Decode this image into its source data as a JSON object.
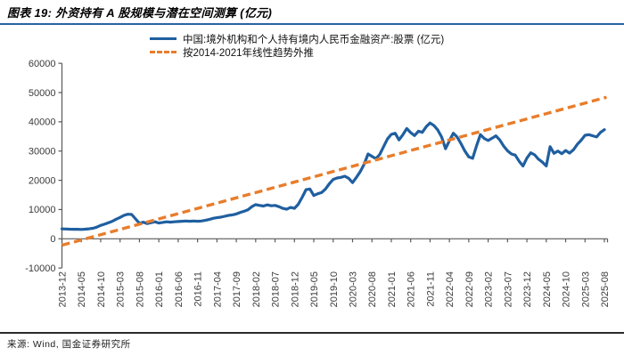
{
  "header": {
    "title": "图表 19: 外资持有 A 股规模与潜在空间测算 (亿元)"
  },
  "legend": [
    {
      "label": "中国:境外机构和个人持有境内人民币金融资产:股票 (亿元)",
      "color": "#1f5fa0",
      "style": "solid"
    },
    {
      "label": "按2014-2021年线性趋势外推",
      "color": "#e87d2b",
      "style": "dashed"
    }
  ],
  "footer": {
    "source": "来源: Wind, 国金证券研究所"
  },
  "colors": {
    "blue_series": "#1f5fa0",
    "orange_trend": "#e87d2b",
    "axis": "#595959",
    "tick_label": "#3b3b3b",
    "title_rule": "#2a63a5",
    "footer_rule": "#2b2b2b"
  },
  "chart_data": {
    "type": "line",
    "title": "外资持有A股规模与潜在空间测算(亿元)",
    "xlabel": "",
    "ylabel": "",
    "ylim": [
      -10000,
      60000
    ],
    "grid": false,
    "legend_position": "top",
    "y_ticks": [
      -10000,
      0,
      10000,
      20000,
      30000,
      40000,
      50000,
      60000
    ],
    "x_tick_labels": [
      "2013-12",
      "2014-05",
      "2014-10",
      "2015-03",
      "2015-08",
      "2016-01",
      "2016-06",
      "2016-11",
      "2017-04",
      "2017-09",
      "2018-02",
      "2018-07",
      "2018-12",
      "2019-05",
      "2019-10",
      "2020-03",
      "2020-08",
      "2021-01",
      "2021-06",
      "2021-11",
      "2022-04",
      "2022-09",
      "2023-02",
      "2023-07",
      "2023-12",
      "2024-05",
      "2024-10",
      "2025-03",
      "2025-08"
    ],
    "x_monthly_from": "2013-12",
    "x_monthly_to": "2025-08",
    "series": [
      {
        "name": "中国:境外机构和个人持有境内人民币金融资产:股票 (亿元)",
        "color": "#1f5fa0",
        "style": "solid",
        "values": [
          3400,
          3350,
          3300,
          3250,
          3250,
          3200,
          3300,
          3400,
          3600,
          4000,
          4600,
          5000,
          5500,
          6000,
          6700,
          7300,
          8000,
          8400,
          8300,
          6800,
          5300,
          5700,
          5200,
          5500,
          5800,
          5400,
          5600,
          5800,
          5700,
          5800,
          5900,
          6000,
          6100,
          6000,
          6100,
          6000,
          6100,
          6300,
          6600,
          7000,
          7200,
          7400,
          7700,
          8000,
          8200,
          8500,
          9000,
          9400,
          9900,
          11000,
          11700,
          11400,
          11200,
          11600,
          11300,
          11400,
          11000,
          10400,
          10100,
          10700,
          10400,
          11800,
          14200,
          16800,
          17000,
          14800,
          15400,
          15800,
          17000,
          18800,
          20300,
          20800,
          21000,
          21400,
          20700,
          19200,
          21000,
          23000,
          25500,
          29000,
          28200,
          27400,
          28800,
          31500,
          34100,
          35700,
          36100,
          33800,
          35600,
          37700,
          36300,
          35300,
          36800,
          36400,
          38300,
          39600,
          38700,
          37200,
          34800,
          30800,
          33500,
          36100,
          34800,
          32500,
          30000,
          28000,
          27500,
          31800,
          35600,
          34300,
          33600,
          34400,
          35200,
          33800,
          31700,
          30100,
          29000,
          28600,
          26500,
          24900,
          27600,
          29400,
          28700,
          27200,
          26200,
          24900,
          31500,
          29200,
          30000,
          29100,
          30200,
          29300,
          30400,
          32300,
          33700,
          35400,
          35600,
          35200,
          34800,
          36400,
          37300
        ]
      },
      {
        "name": "按2014-2021年线性趋势外推",
        "color": "#e87d2b",
        "style": "dashed",
        "trend": {
          "start_value": -2200,
          "end_value": 48400
        }
      }
    ]
  }
}
